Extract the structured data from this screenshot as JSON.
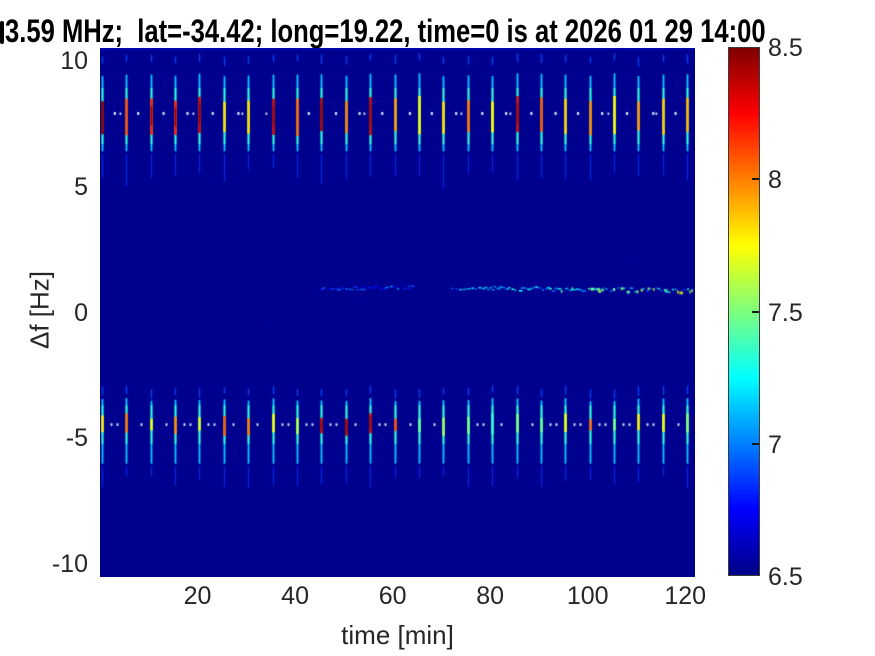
{
  "title": {
    "text": "3.59 MHz;  lat=-34.42; long=19.22, time=0 is at 2026 01 29 14:00",
    "clipped_prefix_note": "partial glyph cut off at left image edge"
  },
  "axes": {
    "xlabel": "time [min]",
    "ylabel": "Δf [Hz]",
    "x_ticks": [
      20,
      40,
      60,
      80,
      100,
      120
    ],
    "y_ticks": [
      10,
      5,
      0,
      -5,
      -10
    ],
    "xlim": [
      0,
      122
    ],
    "ylim": [
      -10.5,
      10.5
    ]
  },
  "colorbar": {
    "tick_labels": [
      "8.5",
      "8",
      "7.5",
      "7",
      "6.5"
    ],
    "tick_values": [
      8.5,
      8,
      7.5,
      7,
      6.5
    ],
    "clim": [
      6.5,
      8.5
    ],
    "jet_stops": [
      [
        0,
        "#000085"
      ],
      [
        0.125,
        "#0000ff"
      ],
      [
        0.375,
        "#00ffff"
      ],
      [
        0.5,
        "#7dff7d"
      ],
      [
        0.625,
        "#ffff00"
      ],
      [
        0.875,
        "#ff0000"
      ],
      [
        1,
        "#800000"
      ]
    ]
  },
  "chart_data": {
    "type": "heatmap",
    "title": "3.59 MHz;  lat=-34.42; long=19.22, time=0 is at 2026 01 29 14:00",
    "xlabel": "time [min]",
    "ylabel": "Δf [Hz]",
    "xlim": [
      0,
      122
    ],
    "ylim": [
      -10.5,
      10.5
    ],
    "colormap": "jet",
    "clim": [
      6.5,
      8.5
    ],
    "background_value": 6.53,
    "background_color": "#00008f",
    "dot_color": "#d5edf8",
    "features": [
      {
        "name": "upper-sideband-pulses",
        "type": "pulse_band",
        "center_hz": 7.8,
        "line_extent_hz": [
          6.4,
          9.5
        ],
        "core_extent_hz": [
          7.0,
          8.6
        ],
        "tip_hz": 10.3,
        "tail_hz": [
          4.9,
          6.3
        ],
        "period_min": 5,
        "t_start_min": 0.4,
        "core_value_range": [
          7.7,
          8.5
        ],
        "dot_hz": 7.9,
        "dots_between": 1,
        "note": "tall cyan streaks every 5 min with red/orange hot cores, single pale dot midway between streaks"
      },
      {
        "name": "lower-sideband-pulses",
        "type": "pulse_band",
        "center_hz": -4.5,
        "line_extent_hz": [
          -6.0,
          -3.4
        ],
        "core_extent_hz": [
          -4.9,
          -4.0
        ],
        "tip_hz": -2.9,
        "tail_hz": [
          -7.0,
          -6.1
        ],
        "period_min": 5,
        "t_start_min": 0.4,
        "core_value_range": [
          7.3,
          8.4
        ],
        "dot_hz": -4.45,
        "dots_between": 2,
        "note": "cyan streaks every 5 min, some red/yellow-green cores, paired pale dots between streaks"
      },
      {
        "name": "doppler-trace",
        "type": "speckle_trace",
        "freq_hz": 1.0,
        "segments": [
          {
            "t": [
              45,
              64
            ],
            "value_range": [
              6.7,
              7.15
            ]
          },
          {
            "t": [
              72,
              122
            ],
            "value_range": [
              6.85,
              7.8
            ]
          }
        ],
        "note": "thin speckled horizontal trace near +1 Hz; faint 45-64 min, brighter with green/yellow patches 72-122 min"
      }
    ]
  }
}
